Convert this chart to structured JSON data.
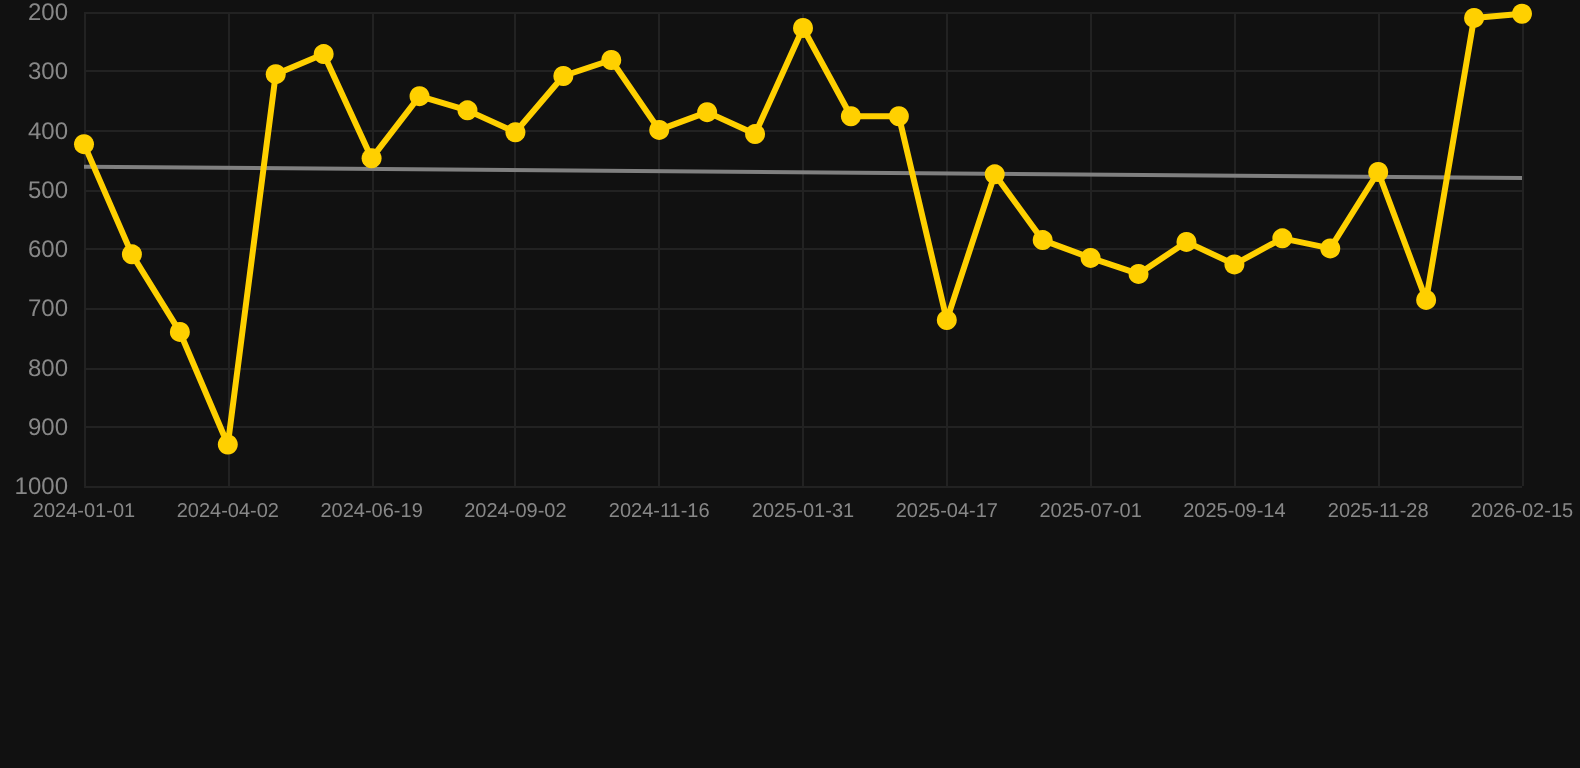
{
  "chart_data": {
    "type": "line",
    "categories": [
      "2024-01-01",
      null,
      null,
      "2024-04-02",
      null,
      null,
      "2024-06-19",
      null,
      null,
      "2024-09-02",
      null,
      null,
      "2024-11-16",
      null,
      null,
      "2025-01-31",
      null,
      null,
      "2025-04-17",
      null,
      null,
      "2025-07-01",
      null,
      null,
      "2025-09-14",
      null,
      null,
      "2025-11-28",
      null,
      null,
      "2026-02-15"
    ],
    "series": [
      {
        "color": "#ffd000",
        "marker": "circle",
        "values": [
          423,
          609,
          740,
          930,
          305,
          271,
          447,
          342,
          366,
          403,
          308,
          281,
          399,
          369,
          406,
          227,
          376,
          376,
          720,
          474,
          585,
          615,
          642,
          588,
          626,
          582,
          599,
          470,
          686,
          210,
          203
        ]
      },
      {
        "color": "#808080",
        "marker": "none",
        "values": [
          461,
          null,
          null,
          null,
          null,
          null,
          null,
          null,
          null,
          null,
          null,
          null,
          null,
          null,
          null,
          null,
          null,
          null,
          null,
          null,
          null,
          null,
          null,
          null,
          null,
          null,
          null,
          null,
          null,
          null,
          480
        ]
      }
    ],
    "ylim": [
      1000,
      200
    ],
    "yticks": [
      200,
      300,
      400,
      500,
      600,
      700,
      800,
      900,
      1000
    ],
    "grid": true
  }
}
